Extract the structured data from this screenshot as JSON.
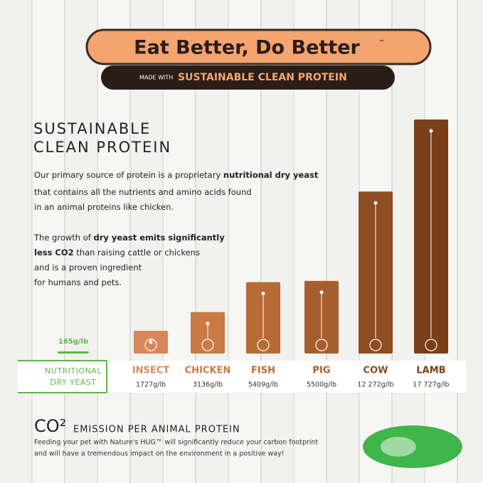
{
  "header": {
    "title": "Eat Better, Do Better",
    "trademark": "™",
    "prefix": "MADE WITH",
    "subtitle": "SUSTAINABLE CLEAN PROTEIN"
  },
  "heading": [
    "SUSTAINABLE",
    "CLEAN PROTEIN"
  ],
  "intro": [
    [
      {
        "text": "Our primary source of protein is a proprietary ",
        "bold": false
      },
      {
        "text": "nutritional dry yeast",
        "bold": true
      }
    ],
    [
      {
        "text": "that contains all the nutrients and amino acids found",
        "bold": false
      }
    ],
    [
      {
        "text": "in an animal proteins like chicken.",
        "bold": false
      }
    ],
    [
      {
        "text": "The growth of ",
        "bold": false
      },
      {
        "text": "dry yeast emits significantly",
        "bold": true
      }
    ],
    [
      {
        "text": "less CO2",
        "bold": true
      },
      {
        "text": " than raising cattle or chickens",
        "bold": false
      }
    ],
    [
      {
        "text": "and is a proven ingredient",
        "bold": false
      }
    ],
    [
      {
        "text": "for humans and pets.",
        "bold": false
      }
    ]
  ],
  "chart_data": {
    "type": "bar",
    "categories": [
      "NUTRITIONAL DRY YEAST",
      "INSECT",
      "CHICKEN",
      "FISH",
      "PIG",
      "COW",
      "LAMB"
    ],
    "values": [
      165,
      1727,
      3136,
      5409,
      5500,
      12272,
      17727
    ],
    "value_labels": [
      "165g/lb",
      "1727g/lb",
      "3136g/lb",
      "5409g/lb",
      "5500g/lb",
      "12 272g/lb",
      "17 727g/lb"
    ],
    "colors": [
      "#5db843",
      "#d9875a",
      "#c97a45",
      "#b86a35",
      "#a65e2d",
      "#8d4c22",
      "#7a3f18"
    ]
  },
  "footer": {
    "title": "CO²",
    "subtitle": "EMISSION PER ANIMAL PROTEIN",
    "lines": [
      "Feeding your pet with Nature's HUG™ will significantly reduce your carbon footprint",
      "and will have a tremendous impact on the environment in a positive way!"
    ]
  }
}
